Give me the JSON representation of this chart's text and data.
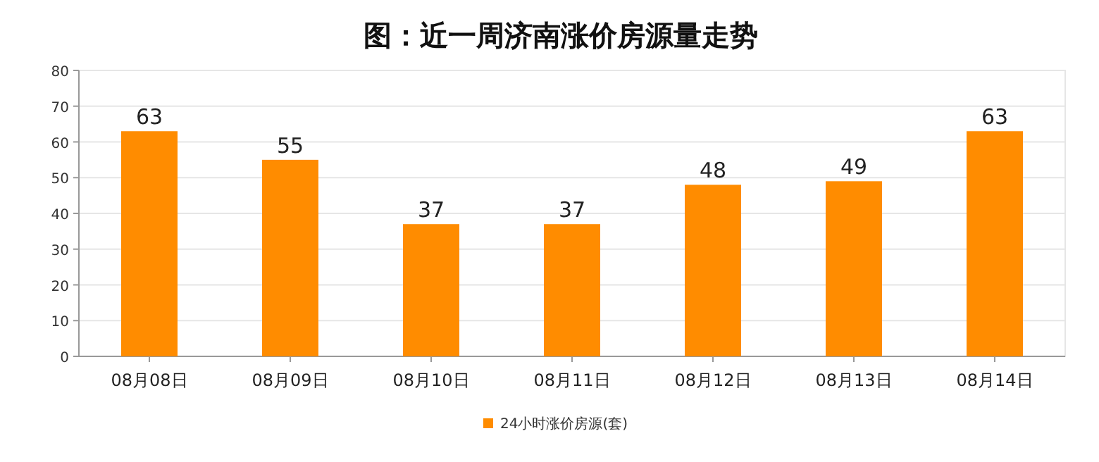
{
  "chart_data": {
    "type": "bar",
    "title": "图：近一周济南涨价房源量走势",
    "categories": [
      "08月08日",
      "08月09日",
      "08月10日",
      "08月11日",
      "08月12日",
      "08月13日",
      "08月14日"
    ],
    "series": [
      {
        "name": "24小时涨价房源(套)",
        "color": "#ff8c00",
        "values": [
          63,
          55,
          37,
          37,
          48,
          49,
          63
        ]
      }
    ],
    "ylim": [
      0,
      80
    ],
    "yticks": [
      0,
      10,
      20,
      30,
      40,
      50,
      60,
      70,
      80
    ],
    "grid": "y",
    "legend": "bottom",
    "data_labels": true
  }
}
